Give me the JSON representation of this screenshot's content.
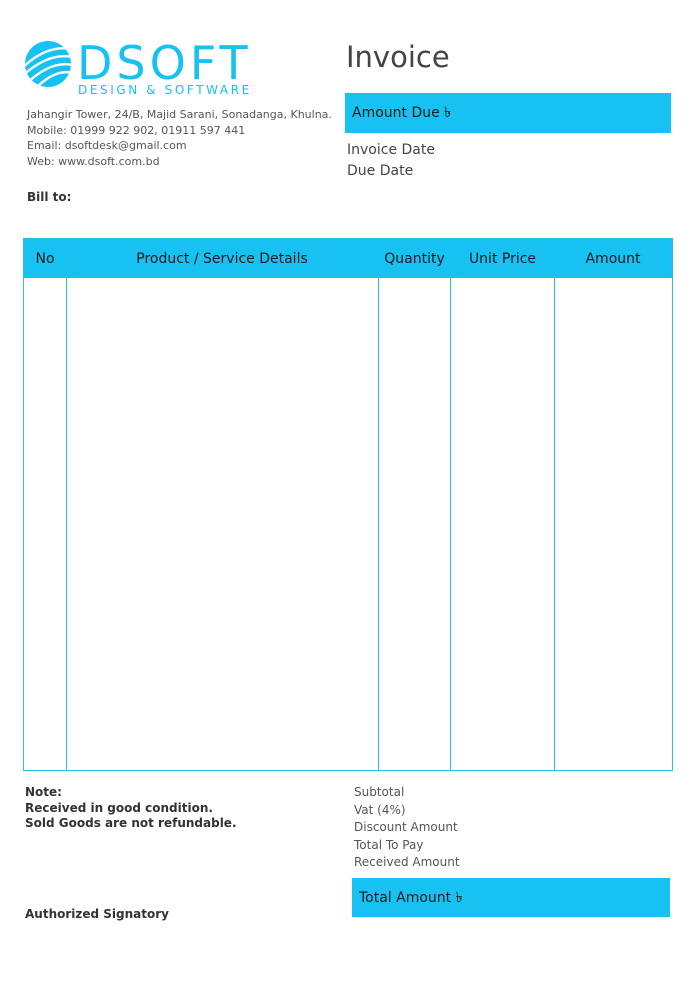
{
  "logo": {
    "wordmark": "DSOFT",
    "tagline": "DESIGN & SOFTWARE",
    "color": "#17c1f2",
    "icon": "globe-icon"
  },
  "company": {
    "address": "Jahangir Tower, 24/B, Majid Sarani, Sonadanga, Khulna.",
    "mobile": "Mobile: 01999 922 902, 01911 597 441",
    "email": "Email: dsoftdesk@gmail.com",
    "web": "Web: www.dsoft.com.bd"
  },
  "bill_to": "Bill to:",
  "invoice": {
    "title": "Invoice",
    "amount_due": "Amount Due ৳",
    "invoice_date": "Invoice Date",
    "due_date": "Due Date"
  },
  "table": {
    "columns": [
      "No",
      "Product / Service Details",
      "Quantity",
      "Unit Price",
      "Amount"
    ],
    "rows": [],
    "accent": "#17c1f2"
  },
  "note": {
    "title": "Note:",
    "lines": [
      "Received in good condition.",
      "Sold Goods are not refundable."
    ]
  },
  "summary": {
    "items": [
      "Subtotal",
      "Vat (4%)",
      "Discount Amount",
      "Total To Pay",
      "Received Amount"
    ],
    "total": "Total Amount ৳"
  },
  "signatory": "Authorized Signatory"
}
